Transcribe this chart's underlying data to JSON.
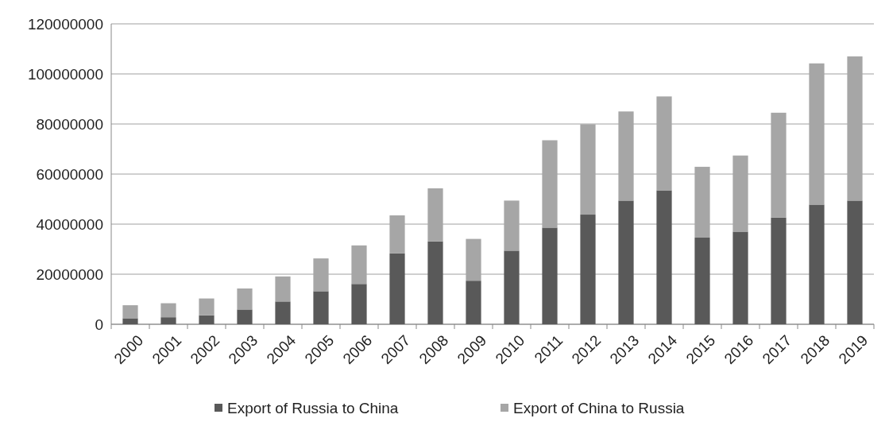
{
  "chart_data": {
    "type": "bar",
    "stacked": true,
    "categories": [
      "2000",
      "2001",
      "2002",
      "2003",
      "2004",
      "2005",
      "2006",
      "2007",
      "2008",
      "2009",
      "2010",
      "2011",
      "2012",
      "2013",
      "2014",
      "2015",
      "2016",
      "2017",
      "2018",
      "2019"
    ],
    "series": [
      {
        "name": "Export of Russia to China",
        "color": "#595959",
        "values": [
          2400000,
          2800000,
          3600000,
          5900000,
          9100000,
          13200000,
          16100000,
          28300000,
          33100000,
          17400000,
          29400000,
          38600000,
          43800000,
          49400000,
          53500000,
          34600000,
          37000000,
          42600000,
          47800000,
          49400000
        ]
      },
      {
        "name": "Export of China to Russia",
        "color": "#a6a6a6",
        "values": [
          5200000,
          5600000,
          6700000,
          8400000,
          10000000,
          13100000,
          15400000,
          15200000,
          21200000,
          16700000,
          20000000,
          34900000,
          36100000,
          35600000,
          37500000,
          28300000,
          30400000,
          41900000,
          56400000,
          57600000
        ]
      }
    ],
    "ylim": [
      0,
      120000000
    ],
    "yticks": [
      0,
      20000000,
      40000000,
      60000000,
      80000000,
      100000000,
      120000000
    ],
    "grid": "y",
    "legend": "bottom"
  }
}
